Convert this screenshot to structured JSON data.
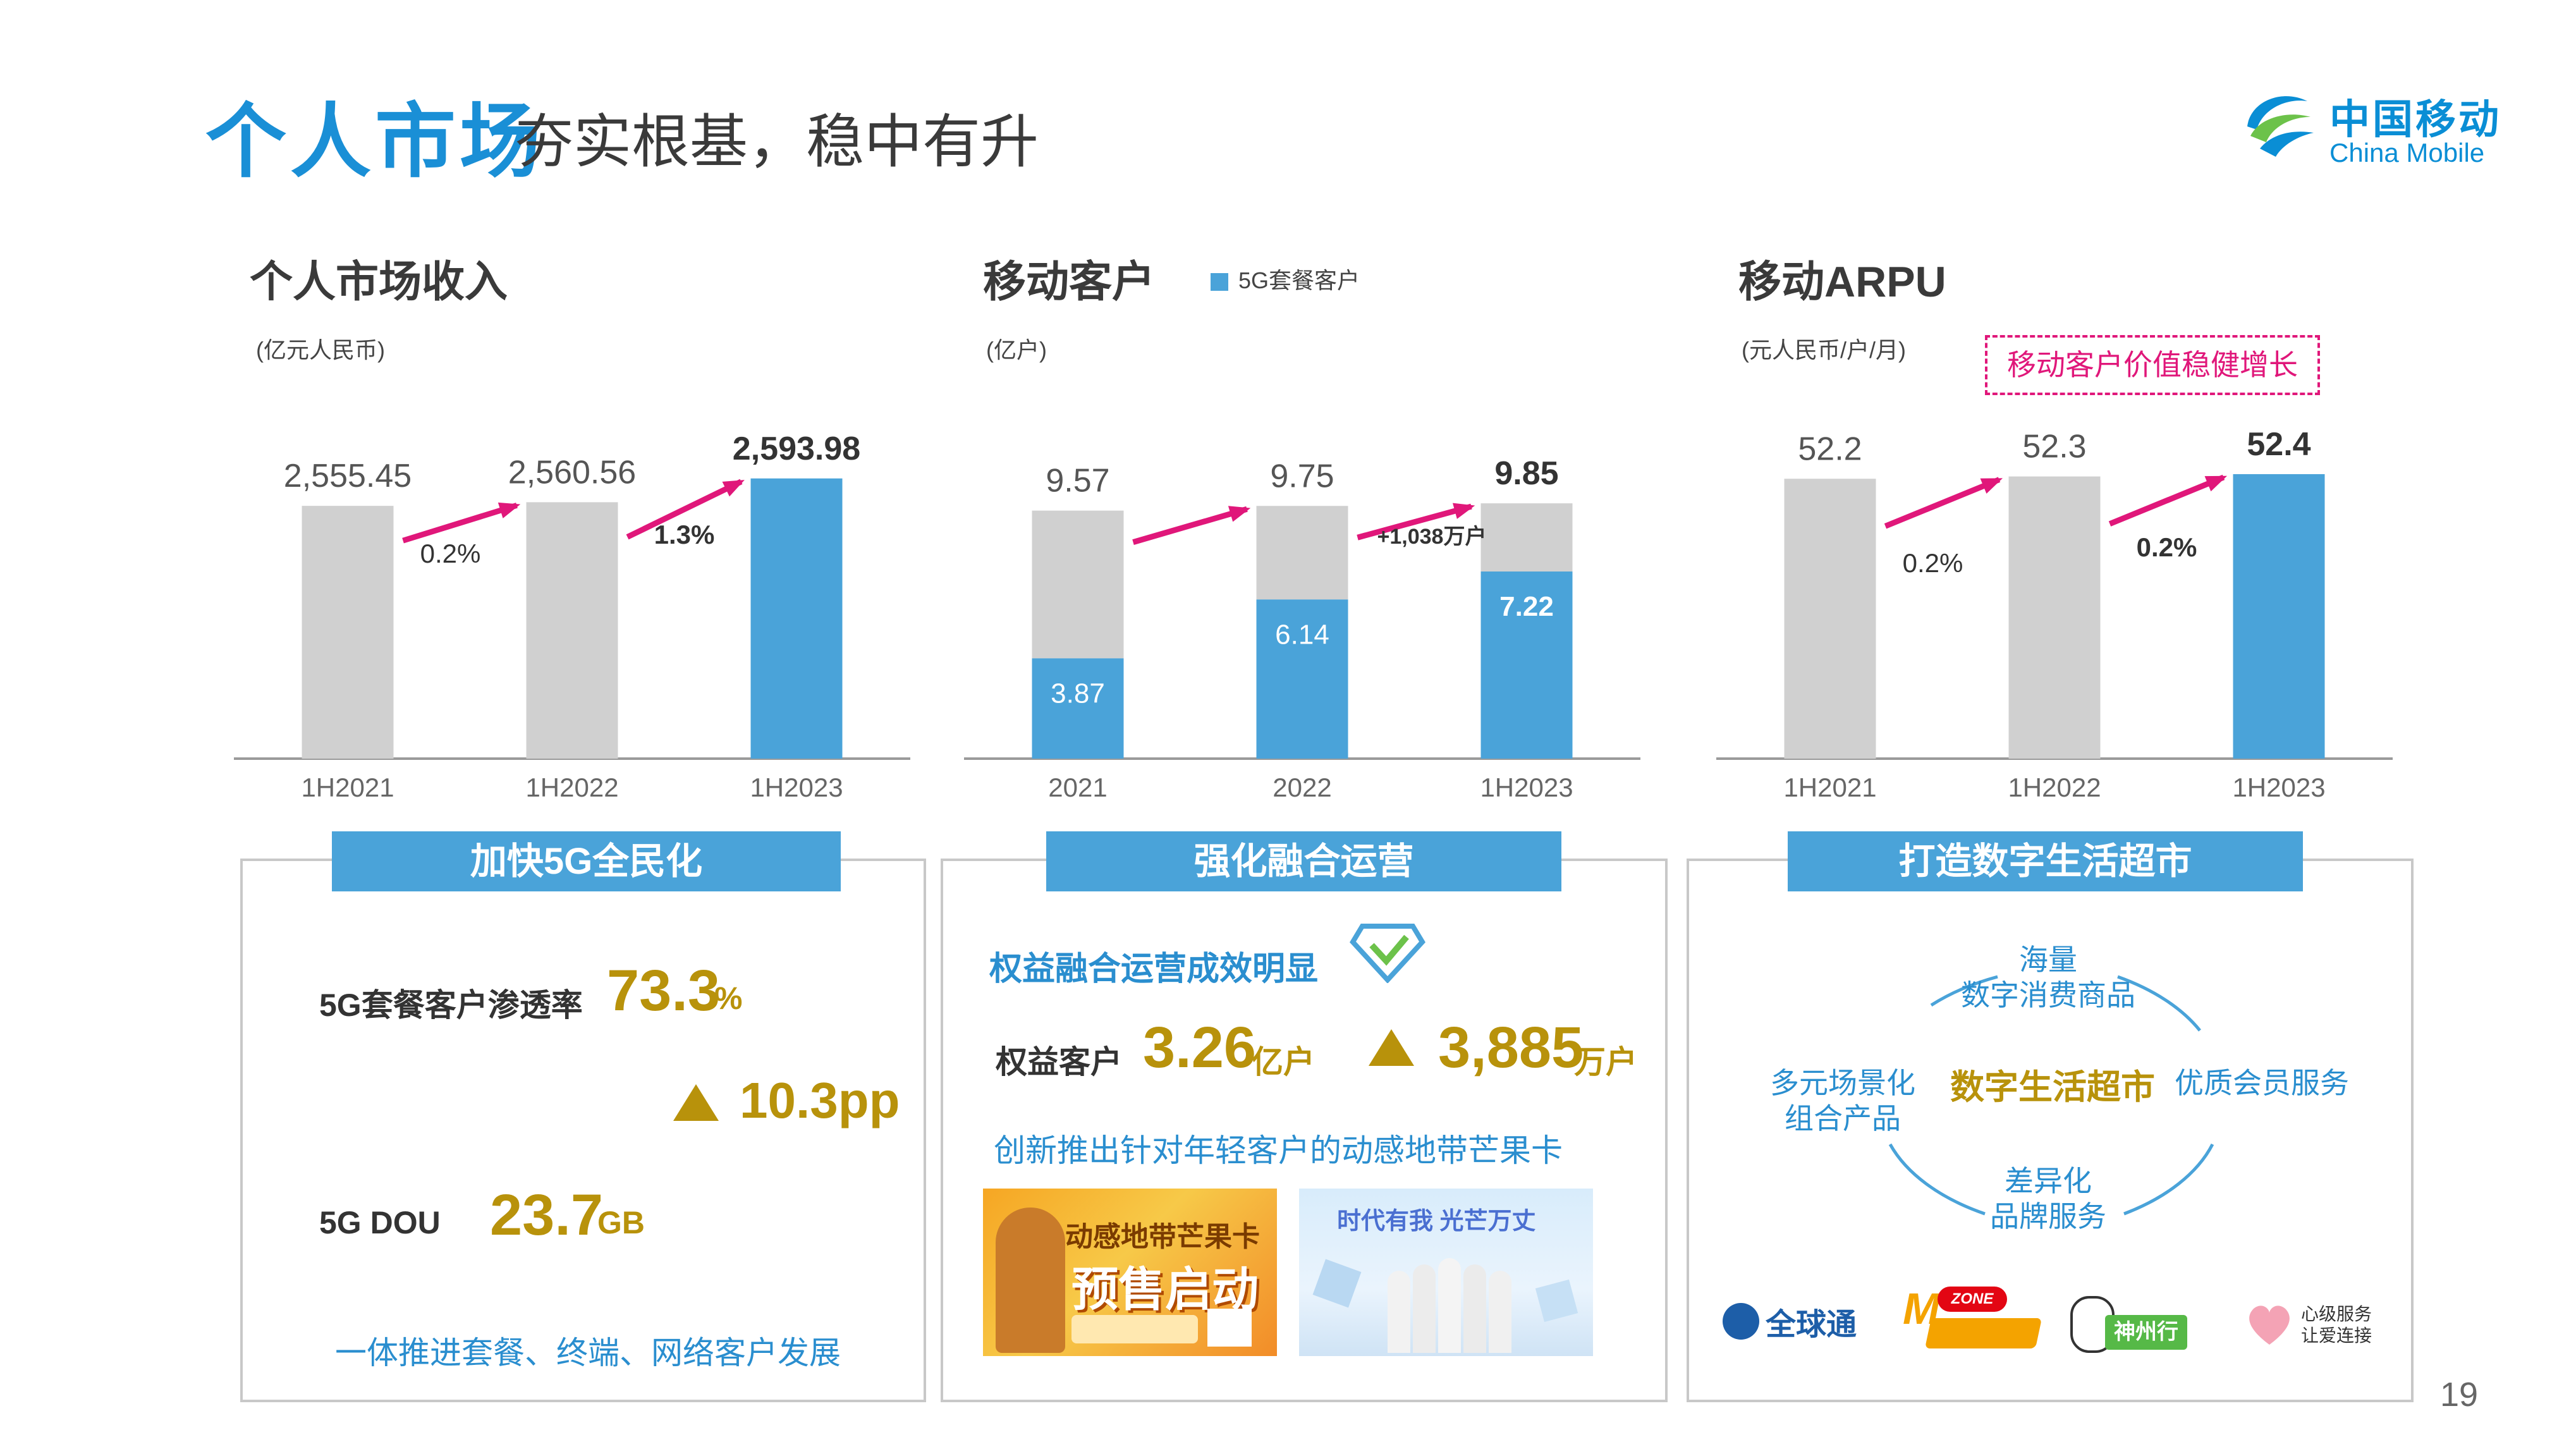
{
  "header": {
    "title_main": "个人市场",
    "title_sub": "夯实根基，稳中有升",
    "logo_cn": "中国移动",
    "logo_en": "China Mobile"
  },
  "colors": {
    "accent_blue": "#4aa3d9",
    "title_blue": "#1a8fd6",
    "bar_gray": "#d0d0d0",
    "arrow_pink": "#e0177a",
    "gold": "#b8920b"
  },
  "sections": {
    "revenue": {
      "title": "个人市场收入",
      "unit": "(亿元人民币)"
    },
    "customers": {
      "title": "移动客户",
      "unit": "(亿户)",
      "legend": "5G套餐客户"
    },
    "arpu": {
      "title": "移动ARPU",
      "unit": "(元人民币/户/月)",
      "note": "移动客户价值稳健增长"
    }
  },
  "chart_data": [
    {
      "type": "bar",
      "categories": [
        "1H2021",
        "1H2022",
        "1H2023"
      ],
      "values": [
        2555.45,
        2560.56,
        2593.98
      ],
      "value_labels": [
        "2,555.45",
        "2,560.56",
        "2,593.98"
      ],
      "growth_labels": [
        "0.2%",
        "1.3%"
      ],
      "ylim": [
        2200,
        2600
      ],
      "highlight_last": true
    },
    {
      "type": "bar",
      "stacked": true,
      "categories": [
        "2021",
        "2022",
        "1H2023"
      ],
      "totals": [
        9.57,
        9.75,
        9.85
      ],
      "series": [
        {
          "name": "5G套餐客户",
          "values": [
            3.87,
            6.14,
            7.22
          ]
        }
      ],
      "growth_labels": [
        "",
        "+1,038万户"
      ],
      "ylim": [
        0,
        10
      ]
    },
    {
      "type": "bar",
      "categories": [
        "1H2021",
        "1H2022",
        "1H2023"
      ],
      "values": [
        52.2,
        52.3,
        52.4
      ],
      "value_labels": [
        "52.2",
        "52.3",
        "52.4"
      ],
      "growth_labels": [
        "0.2%",
        "0.2%"
      ],
      "ylim": [
        40,
        52.4
      ],
      "highlight_last": true
    }
  ],
  "panels": {
    "p1": {
      "header": "加快5G全民化",
      "pen_label": "5G套餐客户渗透率",
      "pen_value": "73.3",
      "pen_unit": "%",
      "pen_change": "10.3pp",
      "dou_label": "5G DOU",
      "dou_value": "23.7",
      "dou_unit": "GB",
      "footer": "一体推进套餐、终端、网络客户发展"
    },
    "p2": {
      "header": "强化融合运营",
      "headline": "权益融合运营成效明显",
      "rights_label": "权益客户",
      "rights_value": "3.26",
      "rights_unit": "亿户",
      "rights_change": "3,885",
      "rights_change_unit": "万户",
      "footer": "创新推出针对年轻客户的动感地带芒果卡",
      "poster1_line1": "动感地带芒果卡",
      "poster1_line2": "预售启动",
      "poster2_line": "时代有我 光芒万丈"
    },
    "p3": {
      "header": "打造数字生活超市",
      "center": "数字生活超市",
      "top": "海量\n数字消费商品",
      "right": "优质会员服务",
      "bottom": "差异化\n品牌服务",
      "left": "多元场景化\n组合产品",
      "brand1": "全球通",
      "brand2": "M-ZONE 动感地带",
      "brand3": "神州行",
      "brand4": "心级服务 让爱连接"
    }
  },
  "page_number": "19"
}
